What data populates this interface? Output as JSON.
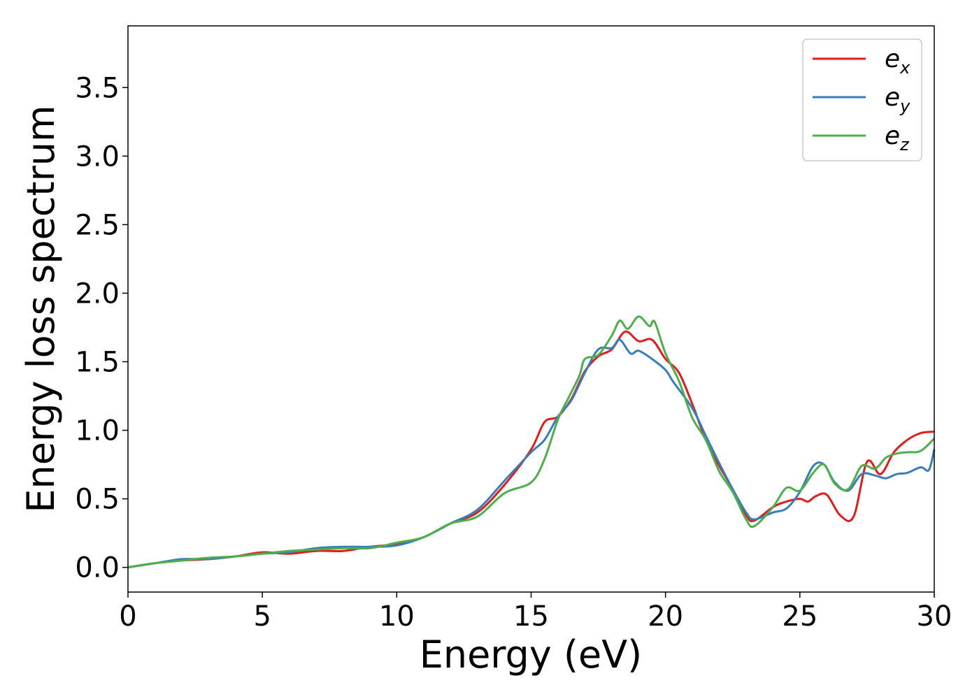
{
  "chart_data": {
    "type": "line",
    "title": "",
    "xlabel": "Energy (eV)",
    "ylabel": "Energy loss spectrum",
    "xlim": [
      0,
      30
    ],
    "ylim": [
      -0.18,
      3.95
    ],
    "x_ticks": [
      "0",
      "5",
      "10",
      "15",
      "20",
      "25",
      "30"
    ],
    "y_ticks": [
      "0.0",
      "0.5",
      "1.0",
      "1.5",
      "2.0",
      "2.5",
      "3.0",
      "3.5"
    ],
    "grid": false,
    "legend_position": "top-right",
    "series": [
      {
        "name": "e_x",
        "legend": {
          "base": "e",
          "sub": "x"
        },
        "color": "#e41a1c",
        "points": [
          [
            0,
            0.0
          ],
          [
            1,
            0.03
          ],
          [
            2,
            0.05
          ],
          [
            3,
            0.06
          ],
          [
            4,
            0.08
          ],
          [
            5,
            0.11
          ],
          [
            6,
            0.1
          ],
          [
            7,
            0.12
          ],
          [
            8,
            0.12
          ],
          [
            9,
            0.15
          ],
          [
            10,
            0.17
          ],
          [
            11,
            0.22
          ],
          [
            12,
            0.32
          ],
          [
            13,
            0.4
          ],
          [
            14,
            0.6
          ],
          [
            15,
            0.86
          ],
          [
            15.5,
            1.06
          ],
          [
            16,
            1.1
          ],
          [
            16.5,
            1.23
          ],
          [
            17,
            1.43
          ],
          [
            17.5,
            1.54
          ],
          [
            18,
            1.59
          ],
          [
            18.5,
            1.72
          ],
          [
            19,
            1.65
          ],
          [
            19.5,
            1.66
          ],
          [
            20,
            1.52
          ],
          [
            20.5,
            1.42
          ],
          [
            21,
            1.19
          ],
          [
            21.5,
            0.93
          ],
          [
            22,
            0.74
          ],
          [
            22.5,
            0.57
          ],
          [
            23,
            0.38
          ],
          [
            23.3,
            0.34
          ],
          [
            24,
            0.44
          ],
          [
            24.5,
            0.48
          ],
          [
            25,
            0.5
          ],
          [
            25.3,
            0.48
          ],
          [
            25.6,
            0.52
          ],
          [
            26,
            0.53
          ],
          [
            26.5,
            0.38
          ],
          [
            27,
            0.37
          ],
          [
            27.5,
            0.77
          ],
          [
            28,
            0.68
          ],
          [
            28.5,
            0.84
          ],
          [
            29,
            0.93
          ],
          [
            29.5,
            0.98
          ],
          [
            30,
            0.99
          ]
        ]
      },
      {
        "name": "e_y",
        "legend": {
          "base": "e",
          "sub": "y"
        },
        "color": "#377eb8",
        "points": [
          [
            0,
            0.0
          ],
          [
            1,
            0.03
          ],
          [
            2,
            0.06
          ],
          [
            3,
            0.06
          ],
          [
            4,
            0.08
          ],
          [
            5,
            0.1
          ],
          [
            6,
            0.11
          ],
          [
            7,
            0.14
          ],
          [
            8,
            0.15
          ],
          [
            9,
            0.15
          ],
          [
            10,
            0.16
          ],
          [
            11,
            0.22
          ],
          [
            12,
            0.32
          ],
          [
            13,
            0.42
          ],
          [
            14,
            0.63
          ],
          [
            15,
            0.84
          ],
          [
            15.5,
            0.93
          ],
          [
            16,
            1.1
          ],
          [
            16.5,
            1.22
          ],
          [
            17,
            1.42
          ],
          [
            17.5,
            1.59
          ],
          [
            18,
            1.6
          ],
          [
            18.3,
            1.66
          ],
          [
            18.7,
            1.56
          ],
          [
            19,
            1.58
          ],
          [
            19.5,
            1.52
          ],
          [
            20,
            1.44
          ],
          [
            20.3,
            1.35
          ],
          [
            21,
            1.16
          ],
          [
            21.5,
            0.96
          ],
          [
            22,
            0.76
          ],
          [
            22.5,
            0.57
          ],
          [
            23,
            0.4
          ],
          [
            23.3,
            0.35
          ],
          [
            24,
            0.4
          ],
          [
            24.5,
            0.43
          ],
          [
            25,
            0.55
          ],
          [
            25.5,
            0.74
          ],
          [
            25.9,
            0.75
          ],
          [
            26.3,
            0.62
          ],
          [
            26.8,
            0.56
          ],
          [
            27.3,
            0.68
          ],
          [
            27.8,
            0.67
          ],
          [
            28.2,
            0.65
          ],
          [
            28.6,
            0.68
          ],
          [
            29,
            0.69
          ],
          [
            29.5,
            0.73
          ],
          [
            29.8,
            0.71
          ],
          [
            30,
            0.86
          ]
        ]
      },
      {
        "name": "e_z",
        "legend": {
          "base": "e",
          "sub": "z"
        },
        "color": "#4daf4a",
        "points": [
          [
            0,
            0.0
          ],
          [
            1,
            0.03
          ],
          [
            2,
            0.05
          ],
          [
            3,
            0.07
          ],
          [
            4,
            0.08
          ],
          [
            5,
            0.1
          ],
          [
            6,
            0.12
          ],
          [
            7,
            0.13
          ],
          [
            8,
            0.14
          ],
          [
            9,
            0.14
          ],
          [
            10,
            0.18
          ],
          [
            11,
            0.22
          ],
          [
            12,
            0.32
          ],
          [
            13,
            0.37
          ],
          [
            14,
            0.54
          ],
          [
            15,
            0.62
          ],
          [
            15.5,
            0.79
          ],
          [
            16,
            1.08
          ],
          [
            16.4,
            1.24
          ],
          [
            16.8,
            1.4
          ],
          [
            17,
            1.52
          ],
          [
            17.5,
            1.55
          ],
          [
            18,
            1.69
          ],
          [
            18.3,
            1.8
          ],
          [
            18.6,
            1.74
          ],
          [
            19,
            1.83
          ],
          [
            19.4,
            1.76
          ],
          [
            19.6,
            1.79
          ],
          [
            20,
            1.56
          ],
          [
            20.5,
            1.36
          ],
          [
            21,
            1.09
          ],
          [
            21.5,
            0.93
          ],
          [
            22,
            0.7
          ],
          [
            22.5,
            0.55
          ],
          [
            23,
            0.35
          ],
          [
            23.3,
            0.3
          ],
          [
            24,
            0.44
          ],
          [
            24.5,
            0.58
          ],
          [
            25,
            0.56
          ],
          [
            25.5,
            0.69
          ],
          [
            25.9,
            0.75
          ],
          [
            26.3,
            0.61
          ],
          [
            26.8,
            0.57
          ],
          [
            27.3,
            0.74
          ],
          [
            27.8,
            0.72
          ],
          [
            28.2,
            0.8
          ],
          [
            28.6,
            0.83
          ],
          [
            29,
            0.84
          ],
          [
            29.5,
            0.85
          ],
          [
            30,
            0.94
          ]
        ]
      }
    ]
  }
}
